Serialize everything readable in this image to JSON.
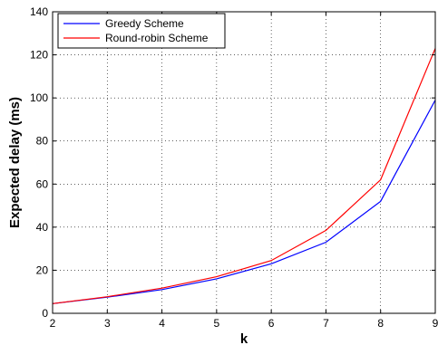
{
  "chart_data": {
    "type": "line",
    "title": "",
    "xlabel": "k",
    "ylabel": "Expected delay (ms)",
    "x": [
      2,
      3,
      4,
      5,
      6,
      7,
      8,
      9
    ],
    "xlim": [
      2,
      9
    ],
    "ylim": [
      0,
      140
    ],
    "xticks": [
      "2",
      "3",
      "4",
      "5",
      "6",
      "7",
      "8",
      "9"
    ],
    "yticks": [
      "0",
      "20",
      "40",
      "60",
      "80",
      "100",
      "120",
      "140"
    ],
    "grid": true,
    "legend_position": "top-left",
    "series": [
      {
        "name": "Greedy Scheme",
        "color": "#0000ff",
        "values": [
          4.5,
          7.5,
          11,
          16,
          23,
          33,
          52,
          99
        ]
      },
      {
        "name": "Round-robin Scheme",
        "color": "#ff0000",
        "values": [
          4.5,
          7.7,
          11.7,
          17,
          24.5,
          38.5,
          62,
          123
        ]
      }
    ]
  }
}
